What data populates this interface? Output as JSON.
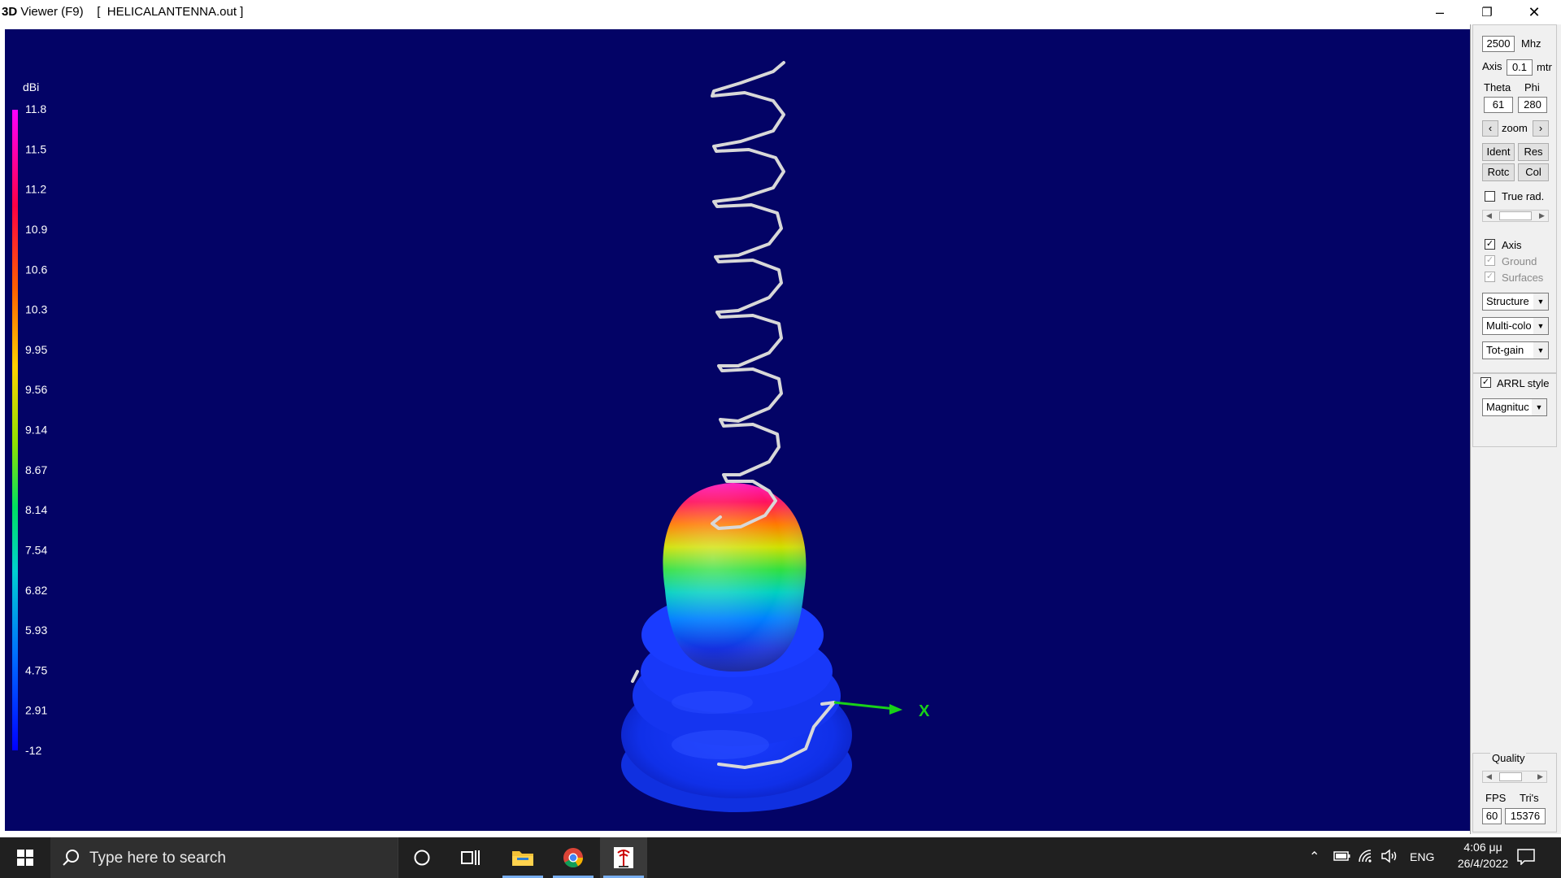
{
  "window": {
    "title_bold": "3D",
    "title_rest": " Viewer (F9)",
    "file_label": "[  HELICALANTENNA.out ]"
  },
  "scale": {
    "unit": "dBi",
    "ticks": [
      "11.8",
      "11.5",
      "11.2",
      "10.9",
      "10.6",
      "10.3",
      "9.95",
      "9.56",
      "9.14",
      "8.67",
      "8.14",
      "7.54",
      "6.82",
      "5.93",
      "4.75",
      "2.91",
      "-12"
    ]
  },
  "axis_label": "X",
  "panel": {
    "freq_value": "2500",
    "freq_unit": "Mhz",
    "axis_label": "Axis",
    "axis_value": "0.1",
    "axis_unit": "mtr",
    "theta_label": "Theta",
    "phi_label": "Phi",
    "theta_value": "61",
    "phi_value": "280",
    "zoom_label": "zoom",
    "buttons": {
      "ident": "Ident",
      "res": "Res",
      "rotc": "Rotc",
      "col": "Col"
    },
    "true_rad_label": "True rad.",
    "true_rad_checked": false,
    "show_axis_label": "Axis",
    "show_axis_checked": true,
    "ground_label": "Ground",
    "ground_checked": true,
    "surfaces_label": "Surfaces",
    "surfaces_checked": true,
    "dropdown_structure": "Structure",
    "dropdown_color": "Multi-colo",
    "dropdown_gain": "Tot-gain",
    "arrl_label": "ARRL style",
    "arrl_checked": true,
    "dropdown_magnitude": "Magnituc",
    "quality_label": "Quality",
    "fps_label": "FPS",
    "tris_label": "Tri's",
    "fps_value": "60",
    "tris_value": "15376"
  },
  "taskbar": {
    "search_placeholder": "Type here to search",
    "lang": "ENG",
    "time": "4:06 μμ",
    "date": "26/4/2022"
  }
}
